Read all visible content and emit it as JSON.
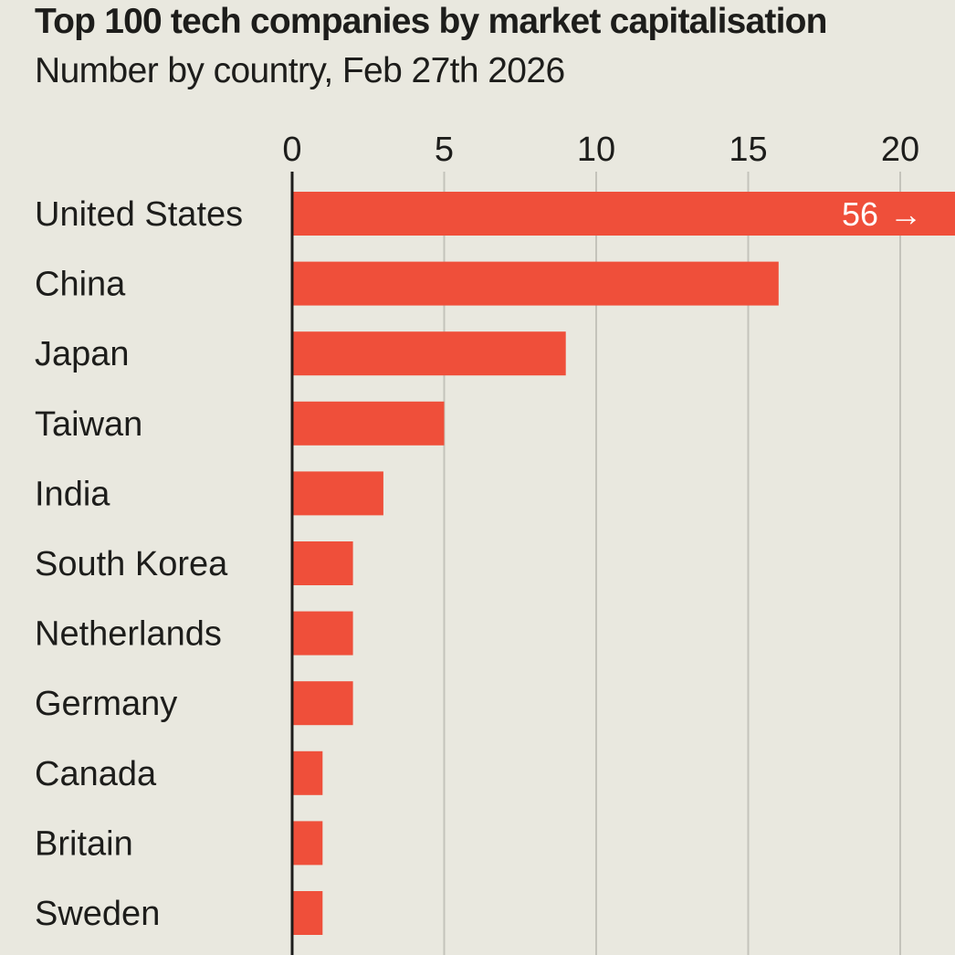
{
  "chart_data": {
    "type": "bar",
    "orientation": "horizontal",
    "title": "Top 100 tech companies by market capitalisation",
    "subtitle": "Number by country, Feb 27th 2026",
    "xlabel": "",
    "ylabel": "",
    "categories": [
      "United States",
      "China",
      "Japan",
      "Taiwan",
      "India",
      "South Korea",
      "Netherlands",
      "Germany",
      "Canada",
      "Britain",
      "Sweden"
    ],
    "values": [
      56,
      16,
      9,
      5,
      3,
      2,
      2,
      2,
      1,
      1,
      1
    ],
    "xlim": [
      0,
      22
    ],
    "xticks": [
      0,
      5,
      10,
      15,
      20
    ],
    "grid": true,
    "truncated": [
      {
        "category": "United States",
        "label": "56",
        "arrow": "→"
      }
    ],
    "colors": {
      "bar": "#ef4f3a",
      "background": "#e9e8df",
      "grid": "#c4c3bb",
      "axis": "#1d1d1b",
      "text": "#1d1d1b",
      "value_label": "#ffffff"
    }
  }
}
